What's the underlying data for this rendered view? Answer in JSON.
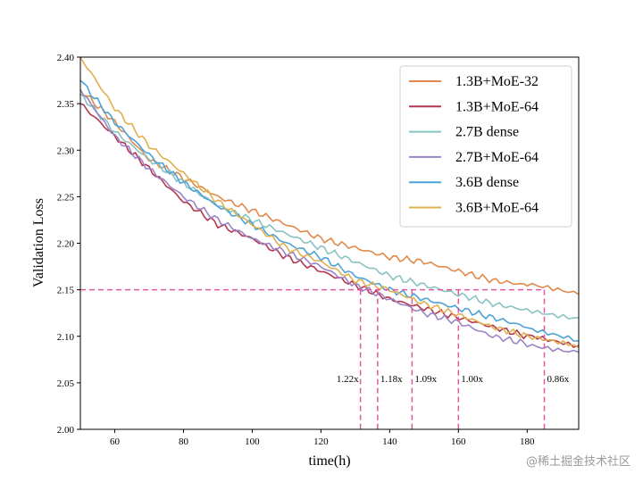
{
  "chart_data": {
    "type": "line",
    "xlabel": "time(h)",
    "ylabel": "Validation Loss",
    "xlim": [
      50,
      195
    ],
    "ylim": [
      2.0,
      2.4
    ],
    "xticks": [
      "60",
      "80",
      "100",
      "120",
      "140",
      "160",
      "180"
    ],
    "yticks": [
      "2.00",
      "2.05",
      "2.10",
      "2.15",
      "2.20",
      "2.25",
      "2.30",
      "2.35",
      "2.40"
    ],
    "legend_position": "top-right",
    "series": [
      {
        "name": "1.3B+MoE-32",
        "color": "#e0894a",
        "x": [
          50,
          60,
          70,
          80,
          90,
          100,
          110,
          120,
          130,
          140,
          150,
          160,
          170,
          180,
          195
        ],
        "y": [
          2.365,
          2.33,
          2.29,
          2.27,
          2.25,
          2.235,
          2.22,
          2.205,
          2.195,
          2.185,
          2.18,
          2.17,
          2.16,
          2.155,
          2.145
        ]
      },
      {
        "name": "1.3B+MoE-64",
        "color": "#b5364f",
        "x": [
          50,
          60,
          70,
          80,
          90,
          100,
          110,
          120,
          130,
          140,
          150,
          160,
          170,
          180,
          195
        ],
        "y": [
          2.35,
          2.315,
          2.28,
          2.245,
          2.22,
          2.205,
          2.185,
          2.17,
          2.155,
          2.14,
          2.13,
          2.12,
          2.11,
          2.1,
          2.09
        ]
      },
      {
        "name": "2.7B dense",
        "color": "#88c3c3",
        "x": [
          50,
          60,
          70,
          80,
          90,
          100,
          110,
          120,
          130,
          140,
          150,
          160,
          170,
          180,
          195
        ],
        "y": [
          2.36,
          2.32,
          2.29,
          2.265,
          2.24,
          2.225,
          2.21,
          2.195,
          2.18,
          2.165,
          2.155,
          2.145,
          2.135,
          2.128,
          2.12
        ]
      },
      {
        "name": "2.7B+MoE-64",
        "color": "#9b84c6",
        "x": [
          50,
          60,
          70,
          80,
          90,
          100,
          110,
          120,
          130,
          140,
          150,
          160,
          170,
          180,
          195
        ],
        "y": [
          2.365,
          2.315,
          2.28,
          2.25,
          2.225,
          2.205,
          2.19,
          2.175,
          2.155,
          2.14,
          2.125,
          2.115,
          2.1,
          2.092,
          2.083
        ]
      },
      {
        "name": "3.6B dense",
        "color": "#4ba3d8",
        "x": [
          50,
          60,
          70,
          80,
          90,
          100,
          110,
          120,
          130,
          140,
          150,
          160,
          170,
          180,
          195
        ],
        "y": [
          2.375,
          2.33,
          2.295,
          2.265,
          2.24,
          2.22,
          2.2,
          2.185,
          2.165,
          2.15,
          2.14,
          2.13,
          2.12,
          2.11,
          2.095
        ]
      },
      {
        "name": "3.6B+MoE-64",
        "color": "#e0b050",
        "x": [
          50,
          60,
          70,
          80,
          90,
          100,
          110,
          120,
          130,
          140,
          150,
          160,
          170,
          180,
          195
        ],
        "y": [
          2.4,
          2.345,
          2.305,
          2.275,
          2.245,
          2.22,
          2.195,
          2.18,
          2.16,
          2.15,
          2.135,
          2.123,
          2.11,
          2.1,
          2.088
        ]
      }
    ],
    "reference_line": {
      "y": 2.15,
      "color": "#e05aa0"
    },
    "speedup_markers": [
      {
        "x": 131.5,
        "label": "1.22x"
      },
      {
        "x": 136.5,
        "label": "1.18x"
      },
      {
        "x": 146.5,
        "label": "1.09x"
      },
      {
        "x": 160,
        "label": "1.00x"
      },
      {
        "x": 185,
        "label": "0.86x"
      }
    ]
  },
  "watermark": "@稀土掘金技术社区"
}
